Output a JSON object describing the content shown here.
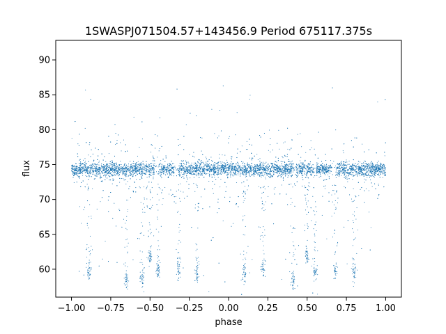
{
  "chart_data": {
    "type": "scatter",
    "title": "1SWASPJ071504.57+143456.9 Period 675117.375s",
    "xlabel": "phase",
    "ylabel": "flux",
    "xlim": [
      -1.1,
      1.1
    ],
    "ylim": [
      56.0,
      92.8
    ],
    "xticks": [
      -1.0,
      -0.75,
      -0.5,
      -0.25,
      0.0,
      0.25,
      0.5,
      0.75,
      1.0
    ],
    "xtick_labels": [
      "−1.00",
      "−0.75",
      "−0.50",
      "−0.25",
      "0.00",
      "0.25",
      "0.50",
      "0.75",
      "1.00"
    ],
    "yticks": [
      60,
      65,
      70,
      75,
      80,
      85,
      90
    ],
    "ytick_labels": [
      "60",
      "65",
      "70",
      "75",
      "80",
      "85",
      "90"
    ],
    "grid": false,
    "series": [
      {
        "color": "#1f77b4",
        "baseline_flux": 74.3,
        "baseline_scatter": 0.5,
        "phase_range": [
          -1.0,
          1.0
        ],
        "gaps_in_baseline": [
          [
            -0.47,
            -0.44
          ],
          [
            -0.35,
            -0.32
          ],
          [
            0.41,
            0.43
          ],
          [
            0.54,
            0.56
          ],
          [
            0.65,
            0.68
          ]
        ],
        "low_flux_clusters": [
          {
            "x": -0.89,
            "y": 59.5
          },
          {
            "x": -0.65,
            "y": 58.5
          },
          {
            "x": -0.55,
            "y": 58.8
          },
          {
            "x": -0.5,
            "y": 61.8
          },
          {
            "x": -0.45,
            "y": 59.8
          },
          {
            "x": -0.32,
            "y": 59.7
          },
          {
            "x": -0.2,
            "y": 59.5
          },
          {
            "x": 0.1,
            "y": 59.5
          },
          {
            "x": 0.22,
            "y": 60.2
          },
          {
            "x": 0.41,
            "y": 58.5
          },
          {
            "x": 0.5,
            "y": 61.8
          },
          {
            "x": 0.55,
            "y": 59.8
          },
          {
            "x": 0.68,
            "y": 59.7
          },
          {
            "x": 0.8,
            "y": 59.5
          }
        ]
      }
    ]
  }
}
